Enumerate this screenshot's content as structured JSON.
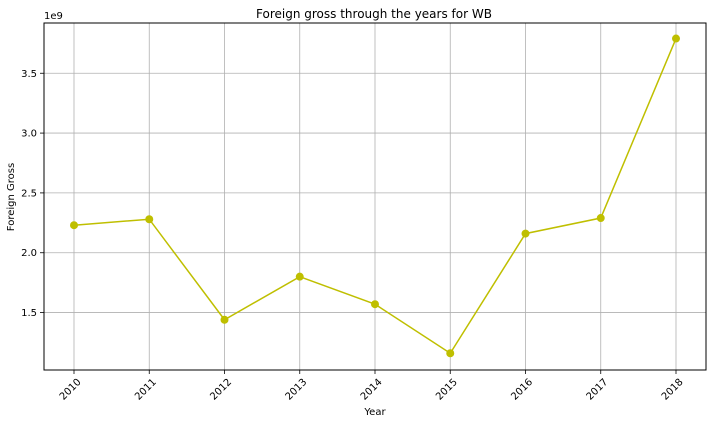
{
  "chart_data": {
    "type": "line",
    "title": "Foreign gross through the years for WB",
    "xlabel": "Year",
    "ylabel": "Foreign Gross",
    "offset_label": "1e9",
    "categories": [
      "2010",
      "2011",
      "2012",
      "2013",
      "2014",
      "2015",
      "2016",
      "2017",
      "2018"
    ],
    "series": [
      {
        "color": "#bfbf00",
        "values": [
          2.23,
          2.28,
          1.44,
          1.8,
          1.57,
          1.16,
          2.16,
          2.29,
          3.79
        ]
      }
    ],
    "ylim": [
      1.02,
      3.92
    ],
    "yticks": [
      1.5,
      2.0,
      2.5,
      3.0,
      3.5
    ],
    "ytick_labels": [
      "1.5",
      "2.0",
      "2.5",
      "3.0",
      "3.5"
    ],
    "grid": true,
    "marker": "circle"
  }
}
